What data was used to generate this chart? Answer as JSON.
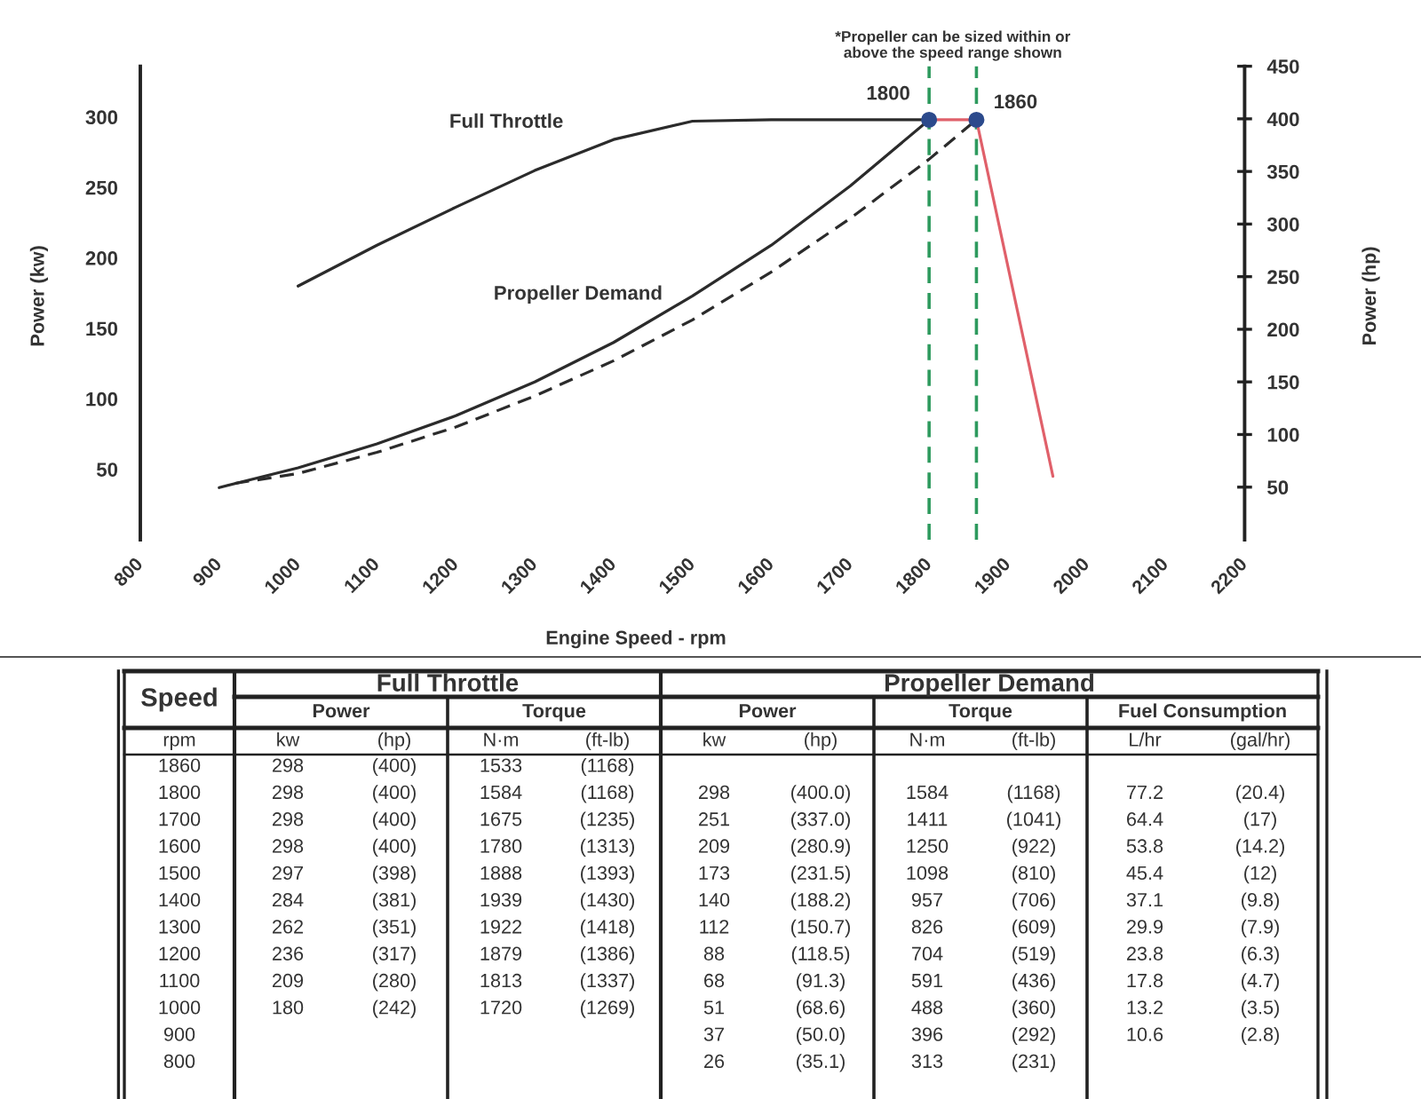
{
  "chart_data": [
    {
      "type": "line",
      "xlabel": "Engine Speed - rpm",
      "ylabel": "Power (kw)",
      "y2label": "Power (hp)",
      "xlim": [
        800,
        2200
      ],
      "xticks": [
        800,
        900,
        1000,
        1100,
        1200,
        1300,
        1400,
        1500,
        1600,
        1700,
        1800,
        1900,
        2000,
        2100,
        2200
      ],
      "ylim": [
        0,
        336
      ],
      "yticks": [
        50,
        100,
        150,
        200,
        250,
        300
      ],
      "y2lim": [
        0,
        450
      ],
      "y2ticks": [
        50,
        100,
        150,
        200,
        250,
        300,
        350,
        400,
        450
      ],
      "annotations": [
        "*Propeller can be sized within or above the speed range shown"
      ],
      "ref_lines": [
        {
          "axis": "x",
          "value": 1800,
          "label": "1800",
          "color": "#2e9a5e",
          "line_style": "dashed"
        },
        {
          "axis": "x",
          "value": 1860,
          "label": "1860",
          "color": "#2e9a5e",
          "line_style": "dashed"
        }
      ],
      "series": [
        {
          "name": "Full Throttle",
          "color": "#2b2b2b",
          "x": [
            1000,
            1100,
            1200,
            1300,
            1400,
            1500,
            1600,
            1700,
            1800
          ],
          "values": [
            180,
            209,
            236,
            262,
            284,
            297,
            298,
            298,
            298
          ]
        },
        {
          "name": "Propeller Demand",
          "color": "#2b2b2b",
          "x": [
            900,
            1000,
            1100,
            1200,
            1300,
            1400,
            1500,
            1600,
            1700,
            1800
          ],
          "values": [
            37,
            51,
            68,
            88,
            112,
            140,
            173,
            209,
            251,
            298
          ]
        },
        {
          "color": "#2b2b2b",
          "line_style": "dashed",
          "x": [
            920,
            1000,
            1100,
            1200,
            1300,
            1400,
            1500,
            1600,
            1700,
            1800,
            1860
          ],
          "values": [
            40,
            47,
            62,
            80,
            102,
            127,
            156,
            190,
            228,
            270,
            298
          ]
        },
        {
          "color": "#e0606a",
          "x": [
            1800,
            1860,
            1957
          ],
          "values": [
            298,
            298,
            45
          ]
        },
        {
          "type": "scatter",
          "marker": "circle",
          "color": "#2c4a8c",
          "x": [
            1800,
            1860
          ],
          "values": [
            298,
            298
          ]
        }
      ]
    },
    {
      "type": "other",
      "annotations": [
        "Speed",
        "rpm",
        "Full Throttle",
        "Propeller Demand",
        "Power",
        "Torque",
        "Power",
        "Torque",
        "Fuel Consumption"
      ],
      "categories": [
        "1860",
        "1800",
        "1700",
        "1600",
        "1500",
        "1400",
        "1300",
        "1200",
        "1100",
        "1000",
        "900",
        "800"
      ],
      "series": [
        {
          "name": "kw",
          "values": [
            298,
            298,
            298,
            298,
            297,
            284,
            262,
            236,
            209,
            180,
            null,
            null
          ],
          "value_labels": [
            "298",
            "298",
            "298",
            "298",
            "297",
            "284",
            "262",
            "236",
            "209",
            "180",
            null,
            null
          ]
        },
        {
          "name": "(hp)",
          "values": [
            400,
            400,
            400,
            400,
            398,
            381,
            351,
            317,
            280,
            242,
            null,
            null
          ],
          "value_labels": [
            "(400)",
            "(400)",
            "(400)",
            "(400)",
            "(398)",
            "(381)",
            "(351)",
            "(317)",
            "(280)",
            "(242)",
            null,
            null
          ]
        },
        {
          "name": "N·m",
          "values": [
            1533,
            1584,
            1675,
            1780,
            1888,
            1939,
            1922,
            1879,
            1813,
            1720,
            null,
            null
          ],
          "value_labels": [
            "1533",
            "1584",
            "1675",
            "1780",
            "1888",
            "1939",
            "1922",
            "1879",
            "1813",
            "1720",
            null,
            null
          ]
        },
        {
          "name": "(ft-lb)",
          "values": [
            1168,
            1168,
            1235,
            1313,
            1393,
            1430,
            1418,
            1386,
            1337,
            1269,
            null,
            null
          ],
          "value_labels": [
            "(1168)",
            "(1168)",
            "(1235)",
            "(1313)",
            "(1393)",
            "(1430)",
            "(1418)",
            "(1386)",
            "(1337)",
            "(1269)",
            null,
            null
          ]
        },
        {
          "name": "kw",
          "values": [
            null,
            298,
            251,
            209,
            173,
            140,
            112,
            88,
            68,
            51,
            37,
            26
          ],
          "value_labels": [
            null,
            "298",
            "251",
            "209",
            "173",
            "140",
            "112",
            "88",
            "68",
            "51",
            "37",
            "26"
          ]
        },
        {
          "name": "(hp)",
          "values": [
            null,
            400.0,
            337.0,
            280.9,
            231.5,
            188.2,
            150.7,
            118.5,
            91.3,
            68.6,
            50.0,
            35.1
          ],
          "value_labels": [
            null,
            "(400.0)",
            "(337.0)",
            "(280.9)",
            "(231.5)",
            "(188.2)",
            "(150.7)",
            "(118.5)",
            "(91.3)",
            "(68.6)",
            "(50.0)",
            "(35.1)"
          ]
        },
        {
          "name": "N·m",
          "values": [
            null,
            1584,
            1411,
            1250,
            1098,
            957,
            826,
            704,
            591,
            488,
            396,
            313
          ],
          "value_labels": [
            null,
            "1584",
            "1411",
            "1250",
            "1098",
            "957",
            "826",
            "704",
            "591",
            "488",
            "396",
            "313"
          ]
        },
        {
          "name": "(ft-lb)",
          "values": [
            null,
            1168,
            1041,
            922,
            810,
            706,
            609,
            519,
            436,
            360,
            292,
            231
          ],
          "value_labels": [
            null,
            "(1168)",
            "(1041)",
            "(922)",
            "(810)",
            "(706)",
            "(609)",
            "(519)",
            "(436)",
            "(360)",
            "(292)",
            "(231)"
          ]
        },
        {
          "name": "L/hr",
          "values": [
            null,
            77.2,
            64.4,
            53.8,
            45.4,
            37.1,
            29.9,
            23.8,
            17.8,
            13.2,
            10.6,
            null
          ],
          "value_labels": [
            null,
            "77.2",
            "64.4",
            "53.8",
            "45.4",
            "37.1",
            "29.9",
            "23.8",
            "17.8",
            "13.2",
            "10.6",
            null
          ]
        },
        {
          "name": "(gal/hr)",
          "values": [
            null,
            20.4,
            17,
            14.2,
            12,
            9.8,
            7.9,
            6.3,
            4.7,
            3.5,
            2.8,
            null
          ],
          "value_labels": [
            null,
            "(20.4)",
            "(17)",
            "(14.2)",
            "(12)",
            "(9.8)",
            "(7.9)",
            "(6.3)",
            "(4.7)",
            "(3.5)",
            "(2.8)",
            null
          ]
        }
      ]
    }
  ]
}
